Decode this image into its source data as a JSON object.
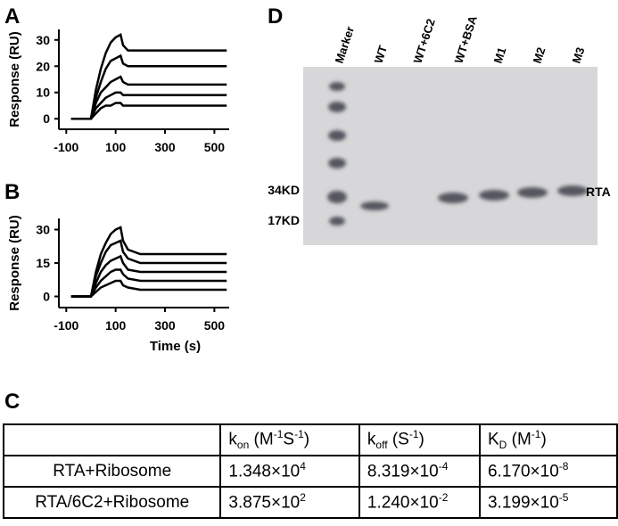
{
  "chart_data": [
    {
      "type": "line",
      "panel_label": "A",
      "y_label": "Response (RU)",
      "x": [
        -80,
        -40,
        0,
        20,
        40,
        60,
        80,
        100,
        120,
        130,
        150,
        200,
        300,
        400,
        500,
        550
      ],
      "xlim": [
        -130,
        560
      ],
      "xticks": [
        -100,
        100,
        300,
        500
      ],
      "ylim": [
        -4,
        34
      ],
      "yticks": [
        0,
        10,
        20,
        30
      ],
      "series": [
        {
          "color": "#000000",
          "values": [
            0,
            0,
            0,
            11,
            19,
            25,
            29,
            31,
            32,
            28,
            26,
            26,
            26,
            26,
            26,
            26
          ]
        },
        {
          "color": "#000000",
          "values": [
            0,
            0,
            0,
            8,
            14,
            19,
            22,
            23,
            24,
            21,
            20,
            20,
            20,
            20,
            20,
            20
          ]
        },
        {
          "color": "#000000",
          "values": [
            0,
            0,
            0,
            6,
            10,
            12,
            14,
            15,
            16,
            14,
            13,
            13,
            13,
            13,
            13,
            13
          ]
        },
        {
          "color": "#000000",
          "values": [
            0,
            0,
            0,
            4,
            6,
            8,
            9,
            10,
            10,
            9,
            9,
            9,
            9,
            9,
            9,
            9
          ]
        },
        {
          "color": "#000000",
          "values": [
            0,
            0,
            0,
            2,
            4,
            5,
            5,
            6,
            6,
            5,
            5,
            5,
            5,
            5,
            5,
            5
          ]
        }
      ]
    },
    {
      "type": "line",
      "panel_label": "B",
      "y_label": "Response (RU)",
      "x_label": "Time (s)",
      "x": [
        -80,
        -40,
        0,
        20,
        40,
        60,
        80,
        100,
        120,
        130,
        150,
        200,
        300,
        400,
        500,
        550
      ],
      "xlim": [
        -130,
        560
      ],
      "xticks": [
        -100,
        100,
        300,
        500
      ],
      "ylim": [
        -5,
        35
      ],
      "yticks": [
        0,
        15,
        30
      ],
      "series": [
        {
          "color": "#000000",
          "values": [
            0,
            0,
            0,
            11,
            19,
            24,
            28,
            30,
            31,
            25,
            21,
            19,
            19,
            19,
            19,
            19
          ]
        },
        {
          "color": "#000000",
          "values": [
            0,
            0,
            0,
            9,
            15,
            20,
            23,
            24,
            25,
            20,
            17,
            15,
            15,
            15,
            15,
            15
          ]
        },
        {
          "color": "#000000",
          "values": [
            0,
            0,
            0,
            6,
            11,
            14,
            16,
            17,
            18,
            15,
            12,
            11,
            11,
            11,
            11,
            11
          ]
        },
        {
          "color": "#000000",
          "values": [
            0,
            0,
            0,
            4,
            7,
            9,
            11,
            12,
            12,
            10,
            8,
            7,
            7,
            7,
            7,
            7
          ]
        },
        {
          "color": "#000000",
          "values": [
            0,
            0,
            0,
            2,
            4,
            5,
            6,
            7,
            7,
            5,
            4,
            3,
            3,
            3,
            3,
            3
          ]
        }
      ]
    }
  ],
  "table": {
    "panel_label": "C",
    "header": [
      [
        {
          "t": "k"
        },
        {
          "sub": "on"
        },
        {
          "t": " (M"
        },
        {
          "sup": "-1"
        },
        {
          "t": "S"
        },
        {
          "sup": "-1"
        },
        {
          "t": ")"
        }
      ],
      [
        {
          "t": "k"
        },
        {
          "sub": "off"
        },
        {
          "t": " (S"
        },
        {
          "sup": "-1"
        },
        {
          "t": ")"
        }
      ],
      [
        {
          "t": "K"
        },
        {
          "sub": "D"
        },
        {
          "t": " (M"
        },
        {
          "sup": "-1"
        },
        {
          "t": ")"
        }
      ]
    ],
    "rows": [
      {
        "label": "RTA+Ribosome",
        "cells": [
          [
            {
              "t": "1.348×10"
            },
            {
              "sup": "4"
            }
          ],
          [
            {
              "t": "8.319×10"
            },
            {
              "sup": "-4"
            }
          ],
          [
            {
              "t": "6.170×10"
            },
            {
              "sup": "-8"
            }
          ]
        ]
      },
      {
        "label": "RTA/6C2+Ribosome",
        "cells": [
          [
            {
              "t": "3.875×10"
            },
            {
              "sup": "2"
            }
          ],
          [
            {
              "t": "1.240×10"
            },
            {
              "sup": "-2"
            }
          ],
          [
            {
              "t": "3.199×10"
            },
            {
              "sup": "-5"
            }
          ]
        ]
      }
    ]
  },
  "gel": {
    "panel_label": "D",
    "lanes": [
      "Marker",
      "WT",
      "WT+6C2",
      "WT+BSA",
      "M1",
      "M2",
      "M3"
    ],
    "markers": [
      "34KD",
      "17KD"
    ],
    "band_label": "RTA"
  }
}
